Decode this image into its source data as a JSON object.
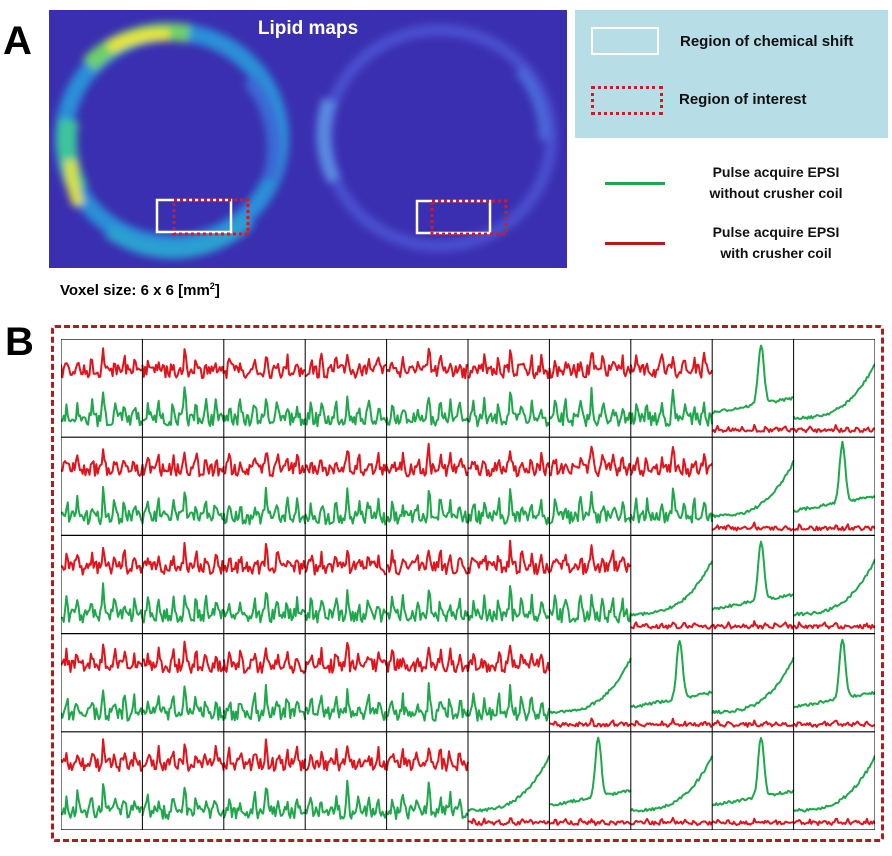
{
  "panels": {
    "a_label": "A",
    "b_label": "B"
  },
  "lipid_map": {
    "title": "Lipid maps"
  },
  "voxel_size": {
    "prefix": "Voxel size: 6 x 6 [mm",
    "sup": "2",
    "suffix": "]"
  },
  "legend": {
    "chemical_shift": "Region of chemical shift",
    "roi": "Region of interest",
    "without_crusher": {
      "line1": "Pulse acquire EPSI",
      "line2": "without crusher coil"
    },
    "with_crusher": {
      "line1": "Pulse acquire EPSI",
      "line2": "with crusher coil"
    }
  },
  "colors": {
    "without_crusher": "#1ea84b",
    "with_crusher": "#e1141c",
    "legend_bg": "#b7dde7",
    "map_bg": "#3a2fb0",
    "frame": "#b01c1c"
  },
  "grid": {
    "rows": 5,
    "cols": 10,
    "separation_cells_per_row": [
      8,
      8,
      7,
      6,
      5
    ]
  }
}
